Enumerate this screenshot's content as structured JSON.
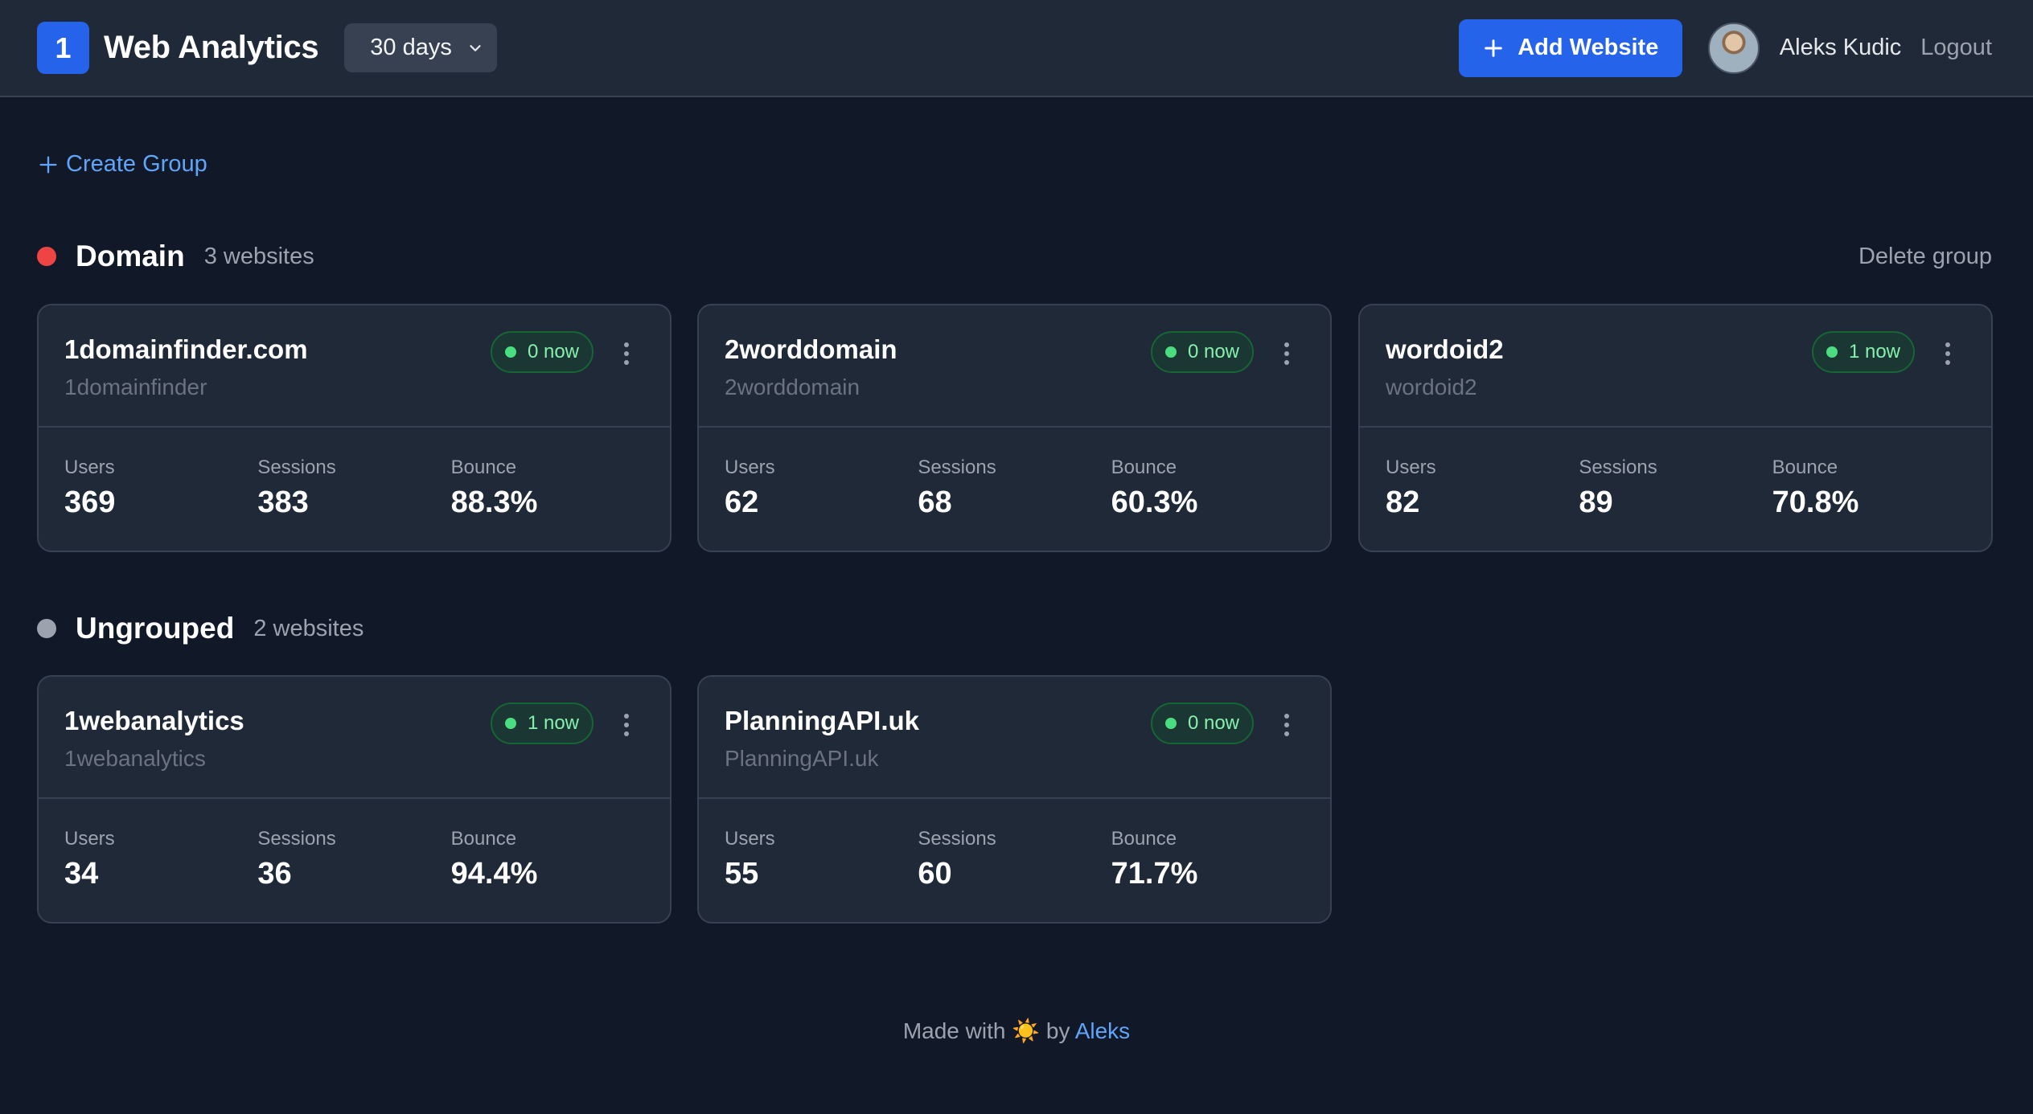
{
  "header": {
    "logo_text": "1",
    "title": "Web Analytics",
    "range": "30 days",
    "add_label": "Add Website",
    "user_name": "Aleks Kudic",
    "logout_label": "Logout"
  },
  "create_group_label": "Create Group",
  "delete_group_label": "Delete group",
  "groups": [
    {
      "name": "Domain",
      "count": "3 websites",
      "color": "#ef4444",
      "sites": [
        {
          "name": "1domainfinder.com",
          "slug": "1domainfinder",
          "live": "0 now",
          "users": "369",
          "sessions": "383",
          "bounce": "88.3%"
        },
        {
          "name": "2worddomain",
          "slug": "2worddomain",
          "live": "0 now",
          "users": "62",
          "sessions": "68",
          "bounce": "60.3%"
        },
        {
          "name": "wordoid2",
          "slug": "wordoid2",
          "live": "1 now",
          "users": "82",
          "sessions": "89",
          "bounce": "70.8%"
        }
      ]
    },
    {
      "name": "Ungrouped",
      "count": "2 websites",
      "color": "#9ca3af",
      "sites": [
        {
          "name": "1webanalytics",
          "slug": "1webanalytics",
          "live": "1 now",
          "users": "34",
          "sessions": "36",
          "bounce": "94.4%"
        },
        {
          "name": "PlanningAPI.uk",
          "slug": "PlanningAPI.uk",
          "live": "0 now",
          "users": "55",
          "sessions": "60",
          "bounce": "71.7%"
        }
      ]
    }
  ],
  "stat_labels": {
    "users": "Users",
    "sessions": "Sessions",
    "bounce": "Bounce"
  },
  "footer": {
    "prefix": "Made with",
    "emoji": "☀️",
    "by": "by",
    "author": "Aleks"
  }
}
